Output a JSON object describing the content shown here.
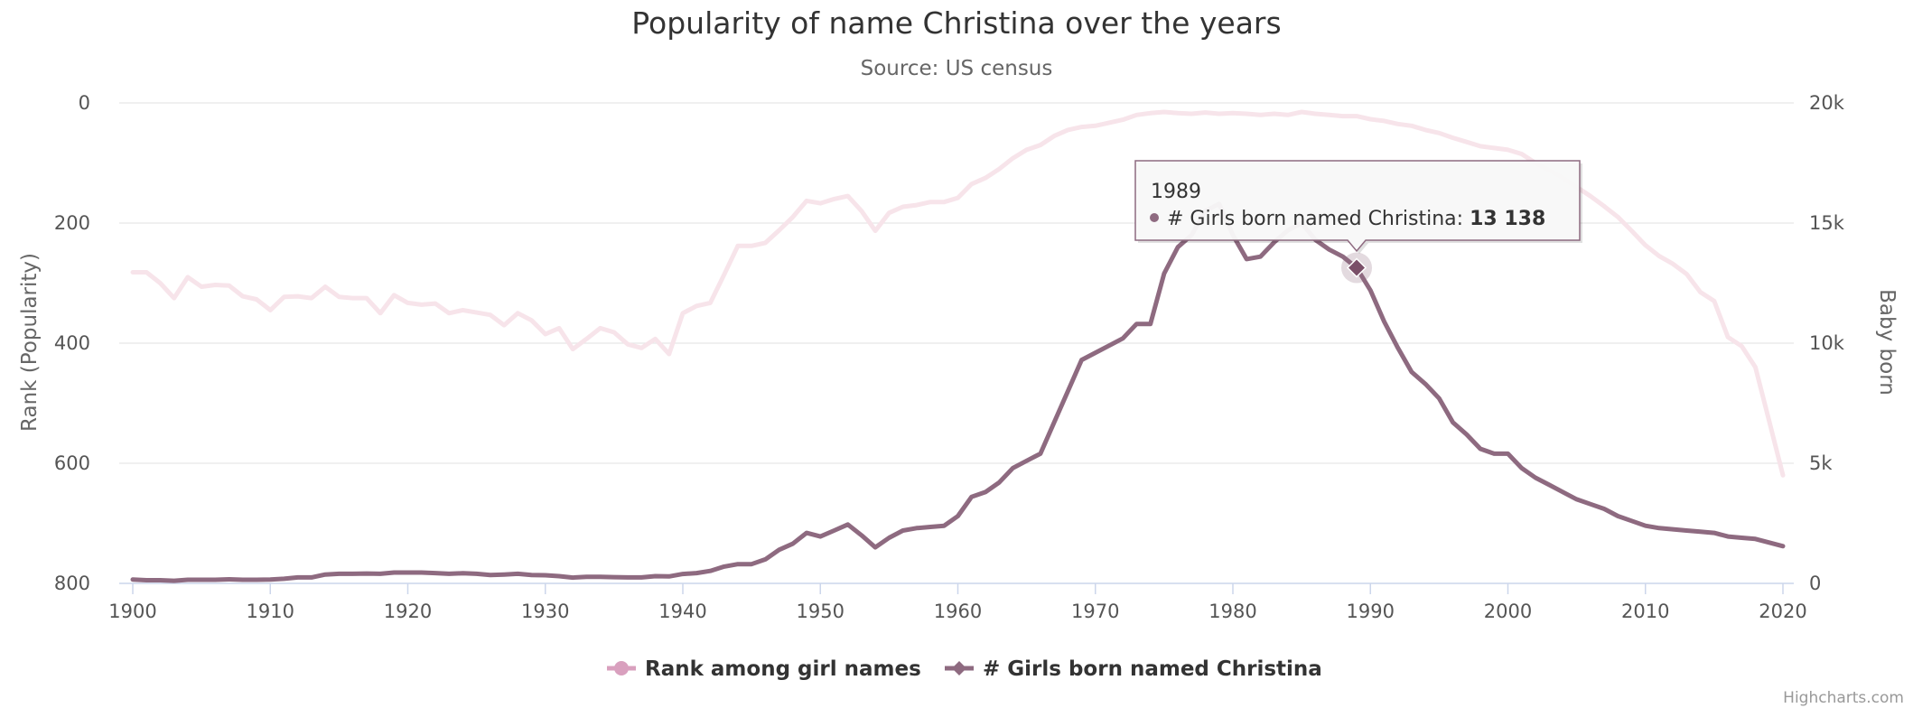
{
  "chart_data": {
    "type": "line",
    "title": "Popularity of name Christina over the years",
    "subtitle": "Source: US census",
    "y_left": {
      "title": "Rank (Popularity)",
      "range": [
        0,
        800
      ],
      "reversed": true,
      "ticks": [
        "0",
        "200",
        "400",
        "600",
        "800"
      ]
    },
    "y_right": {
      "title": "Baby born",
      "range": [
        0,
        20000
      ],
      "ticks": [
        "0",
        "5k",
        "10k",
        "15k",
        "20k"
      ]
    },
    "x_axis": {
      "range": [
        1900,
        2020
      ],
      "ticks": [
        "1900",
        "1910",
        "1920",
        "1930",
        "1940",
        "1950",
        "1960",
        "1970",
        "1980",
        "1990",
        "2000",
        "2010",
        "2020"
      ]
    },
    "grid": true,
    "legend_position": "bottom-center",
    "series": [
      {
        "name": "Rank among girl names",
        "axis": "left",
        "color": "#f7e4ea",
        "legend_color": "#d9a0be",
        "marker": "circle",
        "points": [
          [
            1900,
            282
          ],
          [
            1901,
            282
          ],
          [
            1902,
            300
          ],
          [
            1903,
            325
          ],
          [
            1904,
            290
          ],
          [
            1905,
            306
          ],
          [
            1906,
            303
          ],
          [
            1907,
            304
          ],
          [
            1908,
            322
          ],
          [
            1909,
            327
          ],
          [
            1910,
            345
          ],
          [
            1911,
            323
          ],
          [
            1912,
            322
          ],
          [
            1913,
            325
          ],
          [
            1914,
            306
          ],
          [
            1915,
            323
          ],
          [
            1916,
            325
          ],
          [
            1917,
            325
          ],
          [
            1918,
            350
          ],
          [
            1919,
            320
          ],
          [
            1920,
            333
          ],
          [
            1921,
            336
          ],
          [
            1922,
            334
          ],
          [
            1923,
            350
          ],
          [
            1924,
            345
          ],
          [
            1925,
            349
          ],
          [
            1926,
            353
          ],
          [
            1927,
            370
          ],
          [
            1928,
            350
          ],
          [
            1929,
            362
          ],
          [
            1930,
            385
          ],
          [
            1931,
            375
          ],
          [
            1932,
            410
          ],
          [
            1933,
            393
          ],
          [
            1934,
            375
          ],
          [
            1935,
            382
          ],
          [
            1936,
            402
          ],
          [
            1937,
            408
          ],
          [
            1938,
            393
          ],
          [
            1939,
            418
          ],
          [
            1940,
            350
          ],
          [
            1941,
            338
          ],
          [
            1942,
            333
          ],
          [
            1943,
            286
          ],
          [
            1944,
            238
          ],
          [
            1945,
            238
          ],
          [
            1946,
            233
          ],
          [
            1947,
            212
          ],
          [
            1948,
            190
          ],
          [
            1949,
            163
          ],
          [
            1950,
            167
          ],
          [
            1951,
            160
          ],
          [
            1952,
            155
          ],
          [
            1953,
            180
          ],
          [
            1954,
            213
          ],
          [
            1955,
            183
          ],
          [
            1956,
            173
          ],
          [
            1957,
            170
          ],
          [
            1958,
            165
          ],
          [
            1959,
            165
          ],
          [
            1960,
            158
          ],
          [
            1961,
            135
          ],
          [
            1962,
            125
          ],
          [
            1963,
            110
          ],
          [
            1964,
            92
          ],
          [
            1965,
            78
          ],
          [
            1966,
            70
          ],
          [
            1967,
            55
          ],
          [
            1968,
            45
          ],
          [
            1969,
            40
          ],
          [
            1970,
            38
          ],
          [
            1971,
            33
          ],
          [
            1972,
            28
          ],
          [
            1973,
            20
          ],
          [
            1974,
            17
          ],
          [
            1975,
            15
          ],
          [
            1976,
            17
          ],
          [
            1977,
            18
          ],
          [
            1978,
            16
          ],
          [
            1979,
            18
          ],
          [
            1980,
            17
          ],
          [
            1981,
            18
          ],
          [
            1982,
            20
          ],
          [
            1983,
            18
          ],
          [
            1984,
            20
          ],
          [
            1985,
            15
          ],
          [
            1986,
            18
          ],
          [
            1987,
            20
          ],
          [
            1988,
            22
          ],
          [
            1989,
            22
          ],
          [
            1990,
            27
          ],
          [
            1991,
            30
          ],
          [
            1992,
            35
          ],
          [
            1993,
            38
          ],
          [
            1994,
            45
          ],
          [
            1995,
            50
          ],
          [
            1996,
            58
          ],
          [
            1997,
            65
          ],
          [
            1998,
            72
          ],
          [
            1999,
            75
          ],
          [
            2000,
            78
          ],
          [
            2001,
            85
          ],
          [
            2002,
            100
          ],
          [
            2003,
            112
          ],
          [
            2004,
            125
          ],
          [
            2005,
            140
          ],
          [
            2006,
            155
          ],
          [
            2007,
            172
          ],
          [
            2008,
            190
          ],
          [
            2009,
            213
          ],
          [
            2010,
            237
          ],
          [
            2011,
            255
          ],
          [
            2012,
            268
          ],
          [
            2013,
            285
          ],
          [
            2014,
            315
          ],
          [
            2015,
            330
          ],
          [
            2016,
            390
          ],
          [
            2017,
            405
          ],
          [
            2018,
            440
          ],
          [
            2019,
            530
          ],
          [
            2020,
            620
          ]
        ]
      },
      {
        "name": "# Girls born named Christina",
        "axis": "right",
        "color": "#8e6a80",
        "marker": "diamond",
        "points": [
          [
            1900,
            160
          ],
          [
            1901,
            130
          ],
          [
            1902,
            130
          ],
          [
            1903,
            110
          ],
          [
            1904,
            150
          ],
          [
            1905,
            150
          ],
          [
            1906,
            150
          ],
          [
            1907,
            170
          ],
          [
            1908,
            150
          ],
          [
            1909,
            150
          ],
          [
            1910,
            160
          ],
          [
            1911,
            190
          ],
          [
            1912,
            250
          ],
          [
            1913,
            250
          ],
          [
            1914,
            370
          ],
          [
            1915,
            400
          ],
          [
            1916,
            400
          ],
          [
            1917,
            410
          ],
          [
            1918,
            400
          ],
          [
            1919,
            450
          ],
          [
            1920,
            450
          ],
          [
            1921,
            450
          ],
          [
            1922,
            430
          ],
          [
            1923,
            400
          ],
          [
            1924,
            420
          ],
          [
            1925,
            400
          ],
          [
            1926,
            350
          ],
          [
            1927,
            370
          ],
          [
            1928,
            400
          ],
          [
            1929,
            350
          ],
          [
            1930,
            340
          ],
          [
            1931,
            300
          ],
          [
            1932,
            240
          ],
          [
            1933,
            270
          ],
          [
            1934,
            270
          ],
          [
            1935,
            260
          ],
          [
            1936,
            250
          ],
          [
            1937,
            250
          ],
          [
            1938,
            300
          ],
          [
            1939,
            290
          ],
          [
            1940,
            390
          ],
          [
            1941,
            430
          ],
          [
            1942,
            520
          ],
          [
            1943,
            700
          ],
          [
            1944,
            800
          ],
          [
            1945,
            800
          ],
          [
            1946,
            1000
          ],
          [
            1947,
            1400
          ],
          [
            1948,
            1650
          ],
          [
            1949,
            2100
          ],
          [
            1950,
            1950
          ],
          [
            1951,
            2200
          ],
          [
            1952,
            2450
          ],
          [
            1953,
            2000
          ],
          [
            1954,
            1500
          ],
          [
            1955,
            1900
          ],
          [
            1956,
            2200
          ],
          [
            1957,
            2300
          ],
          [
            1958,
            2350
          ],
          [
            1959,
            2400
          ],
          [
            1960,
            2800
          ],
          [
            1961,
            3600
          ],
          [
            1962,
            3800
          ],
          [
            1963,
            4200
          ],
          [
            1964,
            4800
          ],
          [
            1965,
            5100
          ],
          [
            1966,
            5400
          ],
          [
            1967,
            6700
          ],
          [
            1968,
            8000
          ],
          [
            1969,
            9300
          ],
          [
            1970,
            9600
          ],
          [
            1971,
            9900
          ],
          [
            1972,
            10200
          ],
          [
            1973,
            10800
          ],
          [
            1974,
            10800
          ],
          [
            1975,
            12900
          ],
          [
            1976,
            14000
          ],
          [
            1977,
            14500
          ],
          [
            1978,
            15500
          ],
          [
            1979,
            15800
          ],
          [
            1980,
            14500
          ],
          [
            1981,
            13500
          ],
          [
            1982,
            13600
          ],
          [
            1983,
            14200
          ],
          [
            1984,
            14700
          ],
          [
            1985,
            15000
          ],
          [
            1986,
            14300
          ],
          [
            1987,
            13900
          ],
          [
            1988,
            13600
          ],
          [
            1989,
            13138
          ],
          [
            1990,
            12200
          ],
          [
            1991,
            10900
          ],
          [
            1992,
            9800
          ],
          [
            1993,
            8800
          ],
          [
            1994,
            8300
          ],
          [
            1995,
            7700
          ],
          [
            1996,
            6700
          ],
          [
            1997,
            6200
          ],
          [
            1998,
            5600
          ],
          [
            1999,
            5400
          ],
          [
            2000,
            5400
          ],
          [
            2001,
            4800
          ],
          [
            2002,
            4400
          ],
          [
            2003,
            4100
          ],
          [
            2004,
            3800
          ],
          [
            2005,
            3500
          ],
          [
            2006,
            3300
          ],
          [
            2007,
            3100
          ],
          [
            2008,
            2800
          ],
          [
            2009,
            2600
          ],
          [
            2010,
            2400
          ],
          [
            2011,
            2300
          ],
          [
            2012,
            2250
          ],
          [
            2013,
            2200
          ],
          [
            2014,
            2150
          ],
          [
            2015,
            2100
          ],
          [
            2016,
            1950
          ],
          [
            2017,
            1900
          ],
          [
            2018,
            1850
          ],
          [
            2019,
            1700
          ],
          [
            2020,
            1550
          ]
        ]
      }
    ],
    "tooltip": {
      "year": "1989",
      "series_label": "# Girls born named Christina:",
      "value": "13 138"
    },
    "credits": "Highcharts.com"
  }
}
